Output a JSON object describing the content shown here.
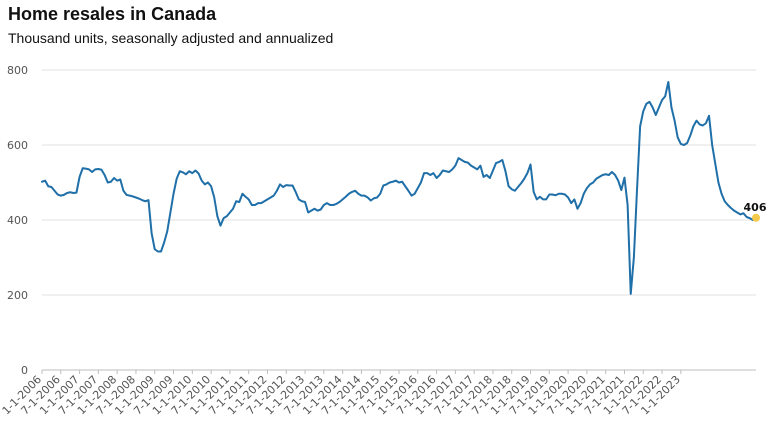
{
  "chart_data": {
    "type": "line",
    "title": "Home resales in Canada",
    "subtitle": "Thousand units, seasonally adjusted and annualized",
    "xlabel": "",
    "ylabel": "",
    "ylim": [
      0,
      800
    ],
    "yticks": [
      0,
      200,
      400,
      600,
      800
    ],
    "xticks": [
      "1-1-2006",
      "7-1-2006",
      "1-1-2007",
      "7-1-2007",
      "1-1-2008",
      "7-1-2008",
      "1-1-2009",
      "7-1-2009",
      "1-1-2010",
      "7-1-2010",
      "1-1-2011",
      "7-1-2011",
      "1-1-2012",
      "7-1-2012",
      "1-1-2013",
      "7-1-2013",
      "1-1-2014",
      "7-1-2014",
      "1-1-2015",
      "7-1-2015",
      "1-1-2016",
      "7-1-2016",
      "1-1-2017",
      "7-1-2017",
      "1-1-2018",
      "7-1-2018",
      "1-1-2019",
      "7-1-2019",
      "1-1-2020",
      "7-1-2020",
      "1-1-2021",
      "7-1-2021",
      "1-1-2022",
      "7-1-2022",
      "1-1-2023"
    ],
    "grid": true,
    "line_color": "#1f6fa8",
    "end_marker_color": "#f3c94a",
    "end_label": "406",
    "x_start": "2006-01",
    "values": [
      502,
      505,
      490,
      488,
      478,
      468,
      465,
      467,
      472,
      474,
      472,
      473,
      515,
      538,
      537,
      535,
      528,
      535,
      536,
      534,
      520,
      500,
      502,
      512,
      505,
      508,
      478,
      467,
      465,
      463,
      460,
      457,
      453,
      450,
      453,
      365,
      322,
      316,
      316,
      340,
      370,
      420,
      470,
      510,
      530,
      527,
      522,
      530,
      525,
      532,
      524,
      505,
      495,
      500,
      490,
      460,
      410,
      385,
      405,
      410,
      420,
      430,
      450,
      448,
      470,
      462,
      455,
      440,
      440,
      445,
      445,
      450,
      455,
      460,
      465,
      478,
      495,
      488,
      493,
      492,
      492,
      475,
      455,
      450,
      448,
      420,
      425,
      430,
      425,
      428,
      440,
      445,
      440,
      440,
      443,
      448,
      455,
      462,
      470,
      475,
      478,
      470,
      465,
      465,
      460,
      452,
      458,
      460,
      470,
      492,
      495,
      500,
      502,
      505,
      500,
      502,
      490,
      478,
      465,
      470,
      485,
      500,
      525,
      525,
      520,
      525,
      512,
      520,
      532,
      530,
      528,
      535,
      545,
      565,
      560,
      555,
      553,
      545,
      540,
      535,
      545,
      515,
      520,
      512,
      532,
      552,
      555,
      560,
      530,
      490,
      482,
      478,
      488,
      498,
      510,
      525,
      548,
      475,
      455,
      462,
      455,
      455,
      468,
      468,
      466,
      470,
      470,
      468,
      460,
      445,
      455,
      430,
      445,
      470,
      485,
      495,
      500,
      510,
      515,
      520,
      522,
      520,
      528,
      520,
      505,
      480,
      513,
      440,
      203,
      300,
      480,
      650,
      690,
      710,
      715,
      700,
      680,
      700,
      720,
      730,
      768,
      700,
      665,
      620,
      603,
      600,
      605,
      625,
      650,
      665,
      655,
      652,
      658,
      678,
      600,
      550,
      500,
      470,
      450,
      440,
      432,
      425,
      420,
      415,
      418,
      408,
      405,
      400,
      406
    ]
  }
}
